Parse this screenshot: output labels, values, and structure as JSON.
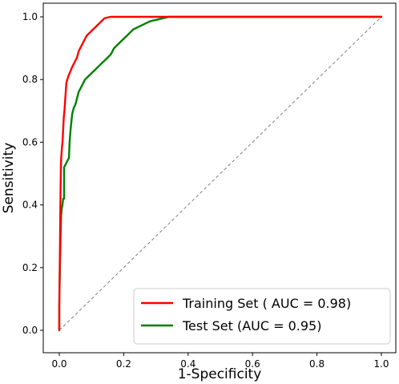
{
  "chart_data": {
    "type": "line",
    "title": "",
    "xlabel": "1-Specificity",
    "ylabel": "Sensitivity",
    "xlim": [
      0,
      1
    ],
    "ylim": [
      0,
      1
    ],
    "xticks": [
      "0.0",
      "0.2",
      "0.4",
      "0.6",
      "0.8",
      "1.0"
    ],
    "yticks": [
      "0.0",
      "0.2",
      "0.4",
      "0.6",
      "0.8",
      "1.0"
    ],
    "grid": false,
    "legend_position": "bottom-right",
    "reference_line": {
      "x": [
        0,
        1
      ],
      "y": [
        0,
        1
      ],
      "color": "#808080",
      "style": "dashed"
    },
    "series": [
      {
        "name": "Training Set ( AUC = 0.98)",
        "color": "#ff0000",
        "x": [
          0.0,
          0.0,
          0.002,
          0.003,
          0.004,
          0.005,
          0.006,
          0.008,
          0.01,
          0.012,
          0.014,
          0.016,
          0.018,
          0.02,
          0.022,
          0.025,
          0.028,
          0.032,
          0.036,
          0.04,
          0.045,
          0.05,
          0.055,
          0.06,
          0.065,
          0.07,
          0.075,
          0.08,
          0.085,
          0.09,
          0.095,
          0.1,
          0.105,
          0.11,
          0.115,
          0.12,
          0.125,
          0.13,
          0.135,
          0.14,
          0.15,
          0.16,
          0.17,
          0.2,
          0.25,
          0.3,
          0.35,
          0.4,
          0.5,
          0.6,
          1.0
        ],
        "y": [
          0.0,
          0.08,
          0.25,
          0.36,
          0.45,
          0.52,
          0.55,
          0.58,
          0.6,
          0.64,
          0.68,
          0.7,
          0.73,
          0.76,
          0.79,
          0.8,
          0.81,
          0.82,
          0.83,
          0.84,
          0.85,
          0.86,
          0.87,
          0.89,
          0.9,
          0.91,
          0.92,
          0.93,
          0.94,
          0.945,
          0.95,
          0.955,
          0.96,
          0.965,
          0.97,
          0.975,
          0.98,
          0.985,
          0.99,
          0.995,
          0.998,
          1.0,
          1.0,
          1.0,
          1.0,
          1.0,
          1.0,
          1.0,
          1.0,
          1.0,
          1.0
        ]
      },
      {
        "name": "Test Set (AUC = 0.95)",
        "color": "#008000",
        "x": [
          0.0,
          0.0,
          0.002,
          0.004,
          0.005,
          0.006,
          0.008,
          0.01,
          0.012,
          0.015,
          0.015,
          0.02,
          0.025,
          0.03,
          0.032,
          0.035,
          0.04,
          0.045,
          0.05,
          0.055,
          0.06,
          0.065,
          0.07,
          0.075,
          0.08,
          0.09,
          0.1,
          0.11,
          0.12,
          0.13,
          0.14,
          0.15,
          0.16,
          0.17,
          0.18,
          0.19,
          0.2,
          0.21,
          0.22,
          0.23,
          0.24,
          0.25,
          0.26,
          0.27,
          0.28,
          0.29,
          0.3,
          0.32,
          0.34,
          0.36,
          0.4,
          0.5,
          1.0
        ],
        "y": [
          0.0,
          0.08,
          0.2,
          0.3,
          0.34,
          0.37,
          0.39,
          0.4,
          0.42,
          0.42,
          0.52,
          0.53,
          0.54,
          0.55,
          0.6,
          0.64,
          0.69,
          0.71,
          0.72,
          0.74,
          0.76,
          0.77,
          0.78,
          0.79,
          0.8,
          0.81,
          0.82,
          0.83,
          0.84,
          0.85,
          0.86,
          0.87,
          0.88,
          0.9,
          0.91,
          0.92,
          0.93,
          0.94,
          0.95,
          0.96,
          0.965,
          0.97,
          0.975,
          0.98,
          0.985,
          0.988,
          0.99,
          0.995,
          1.0,
          1.0,
          1.0,
          1.0,
          1.0
        ]
      }
    ]
  }
}
